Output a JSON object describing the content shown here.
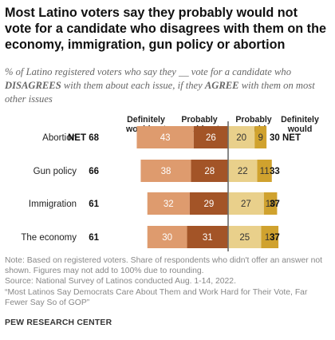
{
  "title": "Most Latino voters say they probably would not vote for a candidate who disagrees with them on the economy, immigration, gun policy or abortion",
  "subtitle": {
    "part1": "% of Latino registered voters who say they __ vote for a candidate who ",
    "emph1": "DISAGREES",
    "part2": " with them about each issue, if they ",
    "emph2": "AGREE",
    "part3": " with them on most other issues"
  },
  "chart_data": {
    "type": "bar",
    "orientation": "horizontal-diverging",
    "categories": [
      "Abortion",
      "Gun policy",
      "Immigration",
      "The economy"
    ],
    "column_headers": [
      "Definitely would not",
      "Probably would not",
      "Probably would",
      "Definitely would"
    ],
    "series": [
      {
        "name": "Definitely would not",
        "values": [
          43,
          38,
          32,
          30
        ],
        "color": "#de9b6e",
        "label_color": "#ffffff"
      },
      {
        "name": "Probably would not",
        "values": [
          26,
          28,
          29,
          31
        ],
        "color": "#a35427",
        "label_color": "#ffffff"
      },
      {
        "name": "Probably would",
        "values": [
          20,
          22,
          27,
          25
        ],
        "color": "#e9d08b",
        "label_color": "#333333"
      },
      {
        "name": "Definitely would",
        "values": [
          9,
          11,
          10,
          13
        ],
        "color": "#d0a22e",
        "label_color": "#333333"
      }
    ],
    "net_left": [
      "NET 68",
      "66",
      "61",
      "61"
    ],
    "net_right": [
      "30 NET",
      "33",
      "37",
      "37"
    ]
  },
  "notes": {
    "note": "Note: Based on registered voters. Share of respondents who didn't offer an answer not shown. Figures may not add to 100% due to rounding.",
    "source": "Source: National Survey of Latinos conducted Aug. 1-14, 2022.",
    "report": "“Most Latinos Say Democrats Care About Them and Work Hard for Their Vote, Far Fewer Say So of GOP”"
  },
  "brand": "PEW RESEARCH CENTER"
}
